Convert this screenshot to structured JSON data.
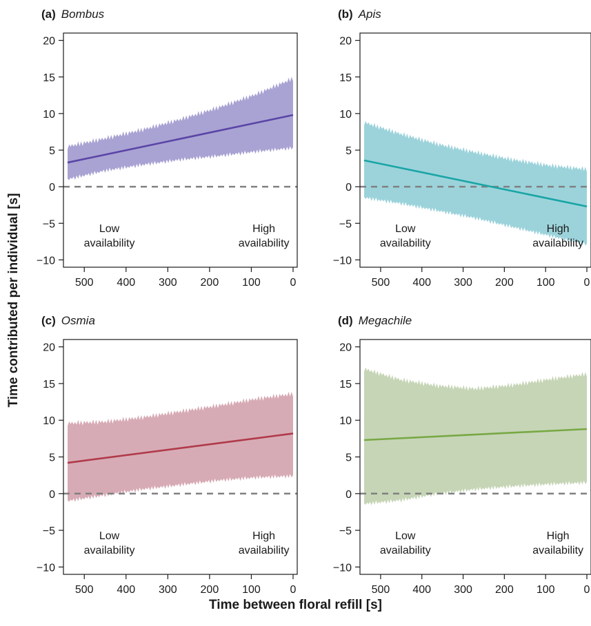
{
  "figure": {
    "ylabel": "Time contributed per individual [s]",
    "xlabel": "Time between floral refill [s]"
  },
  "chart_data": [
    {
      "type": "line",
      "panel_label": "(a)",
      "title": "Bombus",
      "color": "#5a45a6",
      "band_color": "#a9a3d3",
      "xlim": [
        540,
        0
      ],
      "ylim": [
        -11,
        21
      ],
      "xticks": [
        500,
        400,
        300,
        200,
        100,
        0
      ],
      "yticks": [
        -10,
        -5,
        0,
        5,
        10,
        15,
        20
      ],
      "reference_line_y": 0,
      "series": [
        {
          "x": [
            540,
            0
          ],
          "y": [
            3.3,
            9.8
          ]
        }
      ],
      "band": {
        "x": [
          540,
          450,
          360,
          270,
          180,
          90,
          0
        ],
        "upper": [
          5.5,
          6.6,
          7.8,
          9.2,
          10.8,
          12.6,
          14.8
        ],
        "lower": [
          1.0,
          2.2,
          3.0,
          3.7,
          4.2,
          4.8,
          5.3
        ]
      },
      "annotations": {
        "left": [
          "Low",
          "availability"
        ],
        "right": [
          "High",
          "availability"
        ]
      }
    },
    {
      "type": "line",
      "panel_label": "(b)",
      "title": "Apis",
      "color": "#1aa5a5",
      "band_color": "#9cd3db",
      "xlim": [
        540,
        0
      ],
      "ylim": [
        -11,
        21
      ],
      "xticks": [
        500,
        400,
        300,
        200,
        100,
        0
      ],
      "yticks": [
        -10,
        -5,
        0,
        5,
        10,
        15,
        20
      ],
      "reference_line_y": 0,
      "series": [
        {
          "x": [
            540,
            0
          ],
          "y": [
            3.6,
            -2.7
          ]
        }
      ],
      "band": {
        "x": [
          540,
          450,
          360,
          270,
          180,
          90,
          0
        ],
        "upper": [
          8.8,
          7.2,
          5.8,
          4.7,
          3.7,
          2.9,
          2.4
        ],
        "lower": [
          -1.5,
          -2.3,
          -3.3,
          -4.3,
          -5.5,
          -6.7,
          -7.9
        ]
      },
      "annotations": {
        "left": [
          "Low",
          "availability"
        ],
        "right": [
          "High",
          "availability"
        ]
      }
    },
    {
      "type": "line",
      "panel_label": "(c)",
      "title": "Osmia",
      "color": "#b03a4a",
      "band_color": "#d7abb5",
      "xlim": [
        540,
        0
      ],
      "ylim": [
        -11,
        21
      ],
      "xticks": [
        500,
        400,
        300,
        200,
        100,
        0
      ],
      "yticks": [
        -10,
        -5,
        0,
        5,
        10,
        15,
        20
      ],
      "reference_line_y": 0,
      "series": [
        {
          "x": [
            540,
            0
          ],
          "y": [
            4.2,
            8.2
          ]
        }
      ],
      "band": {
        "x": [
          540,
          450,
          360,
          270,
          180,
          90,
          0
        ],
        "upper": [
          9.6,
          9.8,
          10.4,
          11.2,
          12.0,
          12.9,
          13.6
        ],
        "lower": [
          -1.0,
          -0.2,
          0.6,
          1.2,
          1.8,
          2.2,
          2.4
        ]
      },
      "annotations": {
        "left": [
          "Low",
          "availability"
        ],
        "right": [
          "High",
          "availability"
        ]
      }
    },
    {
      "type": "line",
      "panel_label": "(d)",
      "title": "Megachile",
      "color": "#78a844",
      "band_color": "#c6d5b6",
      "xlim": [
        540,
        0
      ],
      "ylim": [
        -11,
        21
      ],
      "xticks": [
        500,
        400,
        300,
        200,
        100,
        0
      ],
      "yticks": [
        -10,
        -5,
        0,
        5,
        10,
        15,
        20
      ],
      "reference_line_y": 0,
      "series": [
        {
          "x": [
            540,
            0
          ],
          "y": [
            7.3,
            8.8
          ]
        }
      ],
      "band": {
        "x": [
          540,
          450,
          360,
          270,
          180,
          90,
          0
        ],
        "upper": [
          17.0,
          15.5,
          14.7,
          14.3,
          14.8,
          15.6,
          16.3
        ],
        "lower": [
          -1.4,
          -0.9,
          0.0,
          0.6,
          1.0,
          1.3,
          1.5
        ]
      },
      "annotations": {
        "left": [
          "Low",
          "availability"
        ],
        "right": [
          "High",
          "availability"
        ]
      }
    }
  ]
}
